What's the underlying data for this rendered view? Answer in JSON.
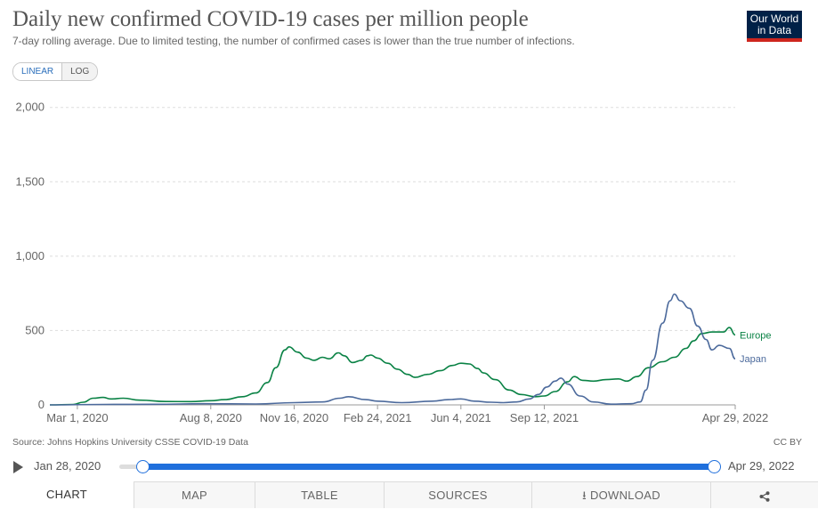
{
  "header": {
    "title": "Daily new confirmed COVID-19 cases per million people",
    "subtitle": "7-day rolling average. Due to limited testing, the number of confirmed cases is lower than the true number of infections.",
    "logo_line1": "Our World",
    "logo_line2": "in Data"
  },
  "scale_toggle": {
    "linear": "LINEAR",
    "log": "LOG",
    "selected": "LINEAR"
  },
  "chart_data": {
    "type": "line",
    "title": "Daily new confirmed COVID-19 cases per million people",
    "xlabel": "",
    "ylabel": "",
    "x_range": [
      "2020-01-28",
      "2022-04-29"
    ],
    "ylim": [
      0,
      2100
    ],
    "y_ticks": [
      0,
      500,
      1000,
      1500,
      2000
    ],
    "y_tick_labels": [
      "0",
      "500",
      "1,000",
      "1,500",
      "2,000"
    ],
    "x_ticks": [
      "2020-03-01",
      "2020-08-08",
      "2020-11-16",
      "2021-02-24",
      "2021-06-04",
      "2021-09-12",
      "2022-04-29"
    ],
    "x_tick_labels": [
      "Mar 1, 2020",
      "Aug 8, 2020",
      "Nov 16, 2020",
      "Feb 24, 2021",
      "Jun 4, 2021",
      "Sep 12, 2021",
      "Apr 29, 2022"
    ],
    "grid": "horizontal dashed",
    "legend": "end-of-line labels",
    "series": [
      {
        "name": "Europe",
        "color": "#0a8245",
        "points": [
          [
            "2020-01-28",
            0
          ],
          [
            "2020-02-25",
            3
          ],
          [
            "2020-03-08",
            18
          ],
          [
            "2020-03-20",
            45
          ],
          [
            "2020-04-01",
            50
          ],
          [
            "2020-04-10",
            40
          ],
          [
            "2020-04-25",
            45
          ],
          [
            "2020-05-15",
            32
          ],
          [
            "2020-06-15",
            23
          ],
          [
            "2020-07-15",
            22
          ],
          [
            "2020-08-08",
            28
          ],
          [
            "2020-08-25",
            35
          ],
          [
            "2020-09-15",
            55
          ],
          [
            "2020-10-01",
            80
          ],
          [
            "2020-10-15",
            150
          ],
          [
            "2020-10-25",
            250
          ],
          [
            "2020-11-05",
            370
          ],
          [
            "2020-11-10",
            390
          ],
          [
            "2020-11-20",
            355
          ],
          [
            "2020-12-01",
            315
          ],
          [
            "2020-12-10",
            300
          ],
          [
            "2020-12-20",
            320
          ],
          [
            "2020-12-28",
            310
          ],
          [
            "2021-01-08",
            350
          ],
          [
            "2021-01-15",
            330
          ],
          [
            "2021-01-25",
            285
          ],
          [
            "2021-02-05",
            300
          ],
          [
            "2021-02-12",
            330
          ],
          [
            "2021-02-16",
            335
          ],
          [
            "2021-02-24",
            315
          ],
          [
            "2021-03-08",
            280
          ],
          [
            "2021-03-20",
            240
          ],
          [
            "2021-04-01",
            205
          ],
          [
            "2021-04-10",
            185
          ],
          [
            "2021-04-25",
            205
          ],
          [
            "2021-05-10",
            230
          ],
          [
            "2021-05-25",
            265
          ],
          [
            "2021-06-04",
            280
          ],
          [
            "2021-06-14",
            275
          ],
          [
            "2021-06-24",
            245
          ],
          [
            "2021-07-01",
            215
          ],
          [
            "2021-07-15",
            170
          ],
          [
            "2021-08-01",
            100
          ],
          [
            "2021-08-15",
            70
          ],
          [
            "2021-09-01",
            55
          ],
          [
            "2021-09-12",
            60
          ],
          [
            "2021-09-25",
            90
          ],
          [
            "2021-10-10",
            155
          ],
          [
            "2021-10-18",
            190
          ],
          [
            "2021-10-28",
            165
          ],
          [
            "2021-11-10",
            160
          ],
          [
            "2021-11-25",
            170
          ],
          [
            "2021-12-10",
            175
          ],
          [
            "2021-12-20",
            160
          ],
          [
            "2022-01-01",
            190
          ],
          [
            "2022-01-15",
            250
          ],
          [
            "2022-02-01",
            290
          ],
          [
            "2022-02-15",
            320
          ],
          [
            "2022-03-01",
            380
          ],
          [
            "2022-03-10",
            430
          ],
          [
            "2022-03-20",
            480
          ],
          [
            "2022-04-01",
            490
          ],
          [
            "2022-04-15",
            490
          ],
          [
            "2022-04-22",
            520
          ],
          [
            "2022-04-29",
            470
          ]
        ]
      },
      {
        "name": "Japan",
        "color": "#4c6a9c",
        "points": [
          [
            "2020-01-28",
            0
          ],
          [
            "2020-04-01",
            3
          ],
          [
            "2020-06-01",
            4
          ],
          [
            "2020-08-01",
            8
          ],
          [
            "2020-10-01",
            6
          ],
          [
            "2020-11-16",
            15
          ],
          [
            "2020-12-20",
            20
          ],
          [
            "2021-01-10",
            45
          ],
          [
            "2021-01-20",
            55
          ],
          [
            "2021-02-10",
            35
          ],
          [
            "2021-02-24",
            25
          ],
          [
            "2021-03-25",
            15
          ],
          [
            "2021-05-01",
            25
          ],
          [
            "2021-05-20",
            35
          ],
          [
            "2021-06-04",
            40
          ],
          [
            "2021-06-20",
            25
          ],
          [
            "2021-07-10",
            18
          ],
          [
            "2021-07-25",
            15
          ],
          [
            "2021-08-10",
            20
          ],
          [
            "2021-08-25",
            40
          ],
          [
            "2021-09-05",
            70
          ],
          [
            "2021-09-15",
            120
          ],
          [
            "2021-09-25",
            160
          ],
          [
            "2021-10-02",
            180
          ],
          [
            "2021-10-10",
            140
          ],
          [
            "2021-10-25",
            60
          ],
          [
            "2021-11-10",
            20
          ],
          [
            "2021-12-01",
            5
          ],
          [
            "2021-12-25",
            8
          ],
          [
            "2022-01-05",
            20
          ],
          [
            "2022-01-12",
            100
          ],
          [
            "2022-01-20",
            300
          ],
          [
            "2022-02-01",
            550
          ],
          [
            "2022-02-10",
            700
          ],
          [
            "2022-02-15",
            745
          ],
          [
            "2022-02-22",
            700
          ],
          [
            "2022-03-05",
            650
          ],
          [
            "2022-03-15",
            530
          ],
          [
            "2022-03-25",
            440
          ],
          [
            "2022-04-01",
            370
          ],
          [
            "2022-04-10",
            400
          ],
          [
            "2022-04-22",
            380
          ],
          [
            "2022-04-29",
            310
          ]
        ]
      }
    ]
  },
  "source": "Source: Johns Hopkins University CSSE COVID-19 Data",
  "license": "CC BY",
  "timeline": {
    "start_label": "Jan 28, 2020",
    "end_label": "Apr 29, 2022",
    "start_fraction": 0.0,
    "end_fraction": 1.0
  },
  "tabs": [
    {
      "label": "CHART",
      "icon": ""
    },
    {
      "label": "MAP",
      "icon": ""
    },
    {
      "label": "TABLE",
      "icon": ""
    },
    {
      "label": "SOURCES",
      "icon": ""
    },
    {
      "label": "DOWNLOAD",
      "icon": "download-icon"
    },
    {
      "label": "",
      "icon": "share-icon"
    }
  ]
}
